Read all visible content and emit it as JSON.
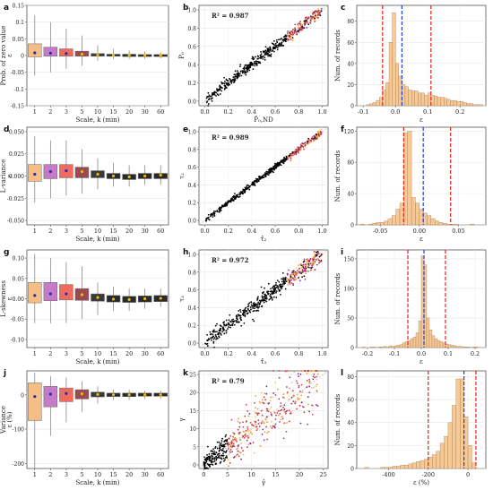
{
  "panels": [
    {
      "id": "a",
      "label": "a",
      "type": "box",
      "ylabel": "Prob. of zero value",
      "yunit": "ε",
      "xlabel": "Scale, k (min)",
      "ylim": [
        -0.15,
        0.15
      ],
      "yticks": [
        "0.15",
        "0.1",
        "0.05",
        "0",
        "-0.05",
        "-0.1",
        "-0.15"
      ],
      "ytickvals": [
        0.15,
        0.1,
        0.05,
        0,
        -0.05,
        -0.1,
        -0.15
      ],
      "categories": [
        "1",
        "2",
        "3",
        "5",
        "10",
        "15",
        "20",
        "30",
        "60"
      ],
      "boxes": [
        {
          "q1": -0.004,
          "q3": 0.035,
          "wlo": -0.06,
          "whi": 0.12,
          "mean": 0.008
        },
        {
          "q1": -0.002,
          "q3": 0.025,
          "wlo": -0.05,
          "whi": 0.1,
          "mean": 0.007
        },
        {
          "q1": -0.002,
          "q3": 0.02,
          "wlo": -0.04,
          "whi": 0.08,
          "mean": 0.006
        },
        {
          "q1": -0.002,
          "q3": 0.013,
          "wlo": -0.03,
          "whi": 0.06,
          "mean": 0.004
        },
        {
          "q1": -0.002,
          "q3": 0.006,
          "wlo": -0.015,
          "whi": 0.03,
          "mean": 0.002
        },
        {
          "q1": -0.002,
          "q3": 0.004,
          "wlo": -0.01,
          "whi": 0.02,
          "mean": 0.001
        },
        {
          "q1": -0.003,
          "q3": 0.004,
          "wlo": -0.01,
          "whi": 0.015,
          "mean": 0.001
        },
        {
          "q1": -0.003,
          "q3": 0.003,
          "wlo": -0.01,
          "whi": 0.012,
          "mean": 0.001
        },
        {
          "q1": -0.003,
          "q3": 0.003,
          "wlo": -0.008,
          "whi": 0.01,
          "mean": 0.001
        }
      ]
    },
    {
      "id": "b",
      "label": "b",
      "type": "scatter",
      "r2": "R² = 0.987",
      "ylabel": "P₀",
      "xlabel": "P̂₀,ND",
      "xlim": [
        -0.05,
        1.05
      ],
      "ylim": [
        -0.05,
        1.05
      ],
      "xticks": [
        "0.0",
        "0.2",
        "0.4",
        "0.6",
        "0.8",
        "1.0"
      ],
      "xtickvals": [
        0,
        0.2,
        0.4,
        0.6,
        0.8,
        1.0
      ],
      "yticks": [
        "0.0",
        "0.2",
        "0.4",
        "0.6",
        "0.8",
        "1.0"
      ],
      "ytickvals": [
        0,
        0.2,
        0.4,
        0.6,
        0.8,
        1.0
      ],
      "spread": 0.03,
      "curve": "linear"
    },
    {
      "id": "c",
      "label": "c",
      "type": "hist",
      "ylabel": "Num. of records",
      "xlabel": "ε",
      "xlim": [
        -0.12,
        0.28
      ],
      "ylim": [
        0,
        95
      ],
      "xticks": [
        "-0.1",
        "0.0",
        "0.1",
        "0.2"
      ],
      "xtickvals": [
        -0.1,
        0,
        0.1,
        0.2
      ],
      "yticks": [
        "0",
        "20",
        "40",
        "60",
        "80"
      ],
      "ytickvals": [
        0,
        20,
        40,
        60,
        80
      ],
      "bin_start": -0.12,
      "bin_width": 0.01,
      "counts": [
        0,
        0,
        0,
        1,
        2,
        3,
        5,
        8,
        15,
        22,
        60,
        88,
        40,
        28,
        20,
        18,
        15,
        14,
        14,
        12,
        12,
        10,
        12,
        10,
        9,
        8,
        8,
        7,
        6,
        5,
        5,
        4,
        4,
        3,
        2,
        2,
        1,
        1,
        1,
        0
      ],
      "red_lines": [
        -0.04,
        0.11
      ],
      "blue_line": 0.02
    },
    {
      "id": "d",
      "label": "d",
      "type": "box",
      "ylabel": "L-variance",
      "yunit": "ε",
      "xlabel": "Scale, k (min)",
      "ylim": [
        -0.055,
        0.055
      ],
      "yticks": [
        "0.050",
        "0.025",
        "0.000",
        "-0.025",
        "-0.050"
      ],
      "ytickvals": [
        0.05,
        0.025,
        0,
        -0.025,
        -0.05
      ],
      "categories": [
        "1",
        "2",
        "3",
        "5",
        "10",
        "15",
        "20",
        "30",
        "60"
      ],
      "boxes": [
        {
          "q1": -0.006,
          "q3": 0.013,
          "wlo": -0.03,
          "whi": 0.045,
          "mean": 0.002
        },
        {
          "q1": -0.003,
          "q3": 0.013,
          "wlo": -0.025,
          "whi": 0.04,
          "mean": 0.005
        },
        {
          "q1": -0.002,
          "q3": 0.013,
          "wlo": -0.022,
          "whi": 0.04,
          "mean": 0.006
        },
        {
          "q1": -0.002,
          "q3": 0.01,
          "wlo": -0.02,
          "whi": 0.03,
          "mean": 0.005
        },
        {
          "q1": -0.002,
          "q3": 0.006,
          "wlo": -0.015,
          "whi": 0.02,
          "mean": 0.002
        },
        {
          "q1": -0.003,
          "q3": 0.003,
          "wlo": -0.012,
          "whi": 0.015,
          "mean": 0.0
        },
        {
          "q1": -0.004,
          "q3": 0.002,
          "wlo": -0.012,
          "whi": 0.012,
          "mean": -0.001
        },
        {
          "q1": -0.003,
          "q3": 0.003,
          "wlo": -0.01,
          "whi": 0.012,
          "mean": 0.0
        },
        {
          "q1": -0.003,
          "q3": 0.003,
          "wlo": -0.01,
          "whi": 0.012,
          "mean": 0.001
        }
      ]
    },
    {
      "id": "e",
      "label": "e",
      "type": "scatter",
      "r2": "R² = 0.989",
      "ylabel": "τ₂",
      "xlabel": "τ̂₂",
      "xlim": [
        -0.05,
        1.05
      ],
      "ylim": [
        -0.05,
        1.05
      ],
      "xticks": [
        "0.0",
        "0.2",
        "0.4",
        "0.6",
        "0.8",
        "1.0"
      ],
      "xtickvals": [
        0,
        0.2,
        0.4,
        0.6,
        0.8,
        1.0
      ],
      "yticks": [
        "0.0",
        "0.2",
        "0.4",
        "0.6",
        "0.8",
        "1.0"
      ],
      "ytickvals": [
        0,
        0.2,
        0.4,
        0.6,
        0.8,
        1.0
      ],
      "spread": 0.015,
      "curve": "linear"
    },
    {
      "id": "f",
      "label": "f",
      "type": "hist",
      "ylabel": "Num. of records",
      "xlabel": "ε",
      "xlim": [
        -0.08,
        0.085
      ],
      "ylim": [
        0,
        125
      ],
      "xticks": [
        "-0.05",
        "0.00",
        "0.05"
      ],
      "xtickvals": [
        -0.05,
        0,
        0.05
      ],
      "yticks": [
        "0",
        "40",
        "80",
        "120"
      ],
      "ytickvals": [
        0,
        40,
        80,
        120
      ],
      "bin_start": -0.075,
      "bin_width": 0.005,
      "counts": [
        1,
        0,
        1,
        2,
        3,
        3,
        5,
        8,
        12,
        20,
        28,
        118,
        120,
        35,
        28,
        20,
        15,
        12,
        8,
        5,
        3,
        2,
        1,
        1,
        1,
        0,
        0,
        0,
        1,
        0,
        0,
        0,
        0
      ],
      "red_lines": [
        -0.02,
        0.04
      ],
      "blue_line": 0.005
    },
    {
      "id": "g",
      "label": "g",
      "type": "box",
      "ylabel": "L-skewness",
      "yunit": "ε",
      "xlabel": "Scale, k (min)",
      "ylim": [
        -0.12,
        0.12
      ],
      "yticks": [
        "0.10",
        "0.05",
        "0.00",
        "-0.05",
        "-0.10"
      ],
      "ytickvals": [
        0.1,
        0.05,
        0,
        -0.05,
        -0.1
      ],
      "categories": [
        "1",
        "2",
        "3",
        "5",
        "10",
        "15",
        "20",
        "30",
        "60"
      ],
      "boxes": [
        {
          "q1": -0.01,
          "q3": 0.04,
          "wlo": -0.06,
          "whi": 0.11,
          "mean": 0.008
        },
        {
          "q1": -0.005,
          "q3": 0.04,
          "wlo": -0.06,
          "whi": 0.1,
          "mean": 0.012
        },
        {
          "q1": -0.003,
          "q3": 0.035,
          "wlo": -0.06,
          "whi": 0.09,
          "mean": 0.012
        },
        {
          "q1": -0.004,
          "q3": 0.025,
          "wlo": -0.05,
          "whi": 0.08,
          "mean": 0.01
        },
        {
          "q1": -0.006,
          "q3": 0.012,
          "wlo": -0.04,
          "whi": 0.04,
          "mean": 0.003
        },
        {
          "q1": -0.008,
          "q3": 0.008,
          "wlo": -0.03,
          "whi": 0.03,
          "mean": -0.001
        },
        {
          "q1": -0.009,
          "q3": 0.006,
          "wlo": -0.03,
          "whi": 0.025,
          "mean": -0.002
        },
        {
          "q1": -0.008,
          "q3": 0.007,
          "wlo": -0.025,
          "whi": 0.025,
          "mean": 0.0
        },
        {
          "q1": -0.007,
          "q3": 0.008,
          "wlo": -0.02,
          "whi": 0.025,
          "mean": 0.001
        }
      ]
    },
    {
      "id": "h",
      "label": "h",
      "type": "scatter",
      "r2": "R² = 0.972",
      "ylabel": "τ₃",
      "xlabel": "τ̂₃",
      "xlim": [
        -0.05,
        1.05
      ],
      "ylim": [
        -0.05,
        1.05
      ],
      "xticks": [
        "0.0",
        "0.2",
        "0.4",
        "0.6",
        "0.8",
        "1.0"
      ],
      "xtickvals": [
        0,
        0.2,
        0.4,
        0.6,
        0.8,
        1.0
      ],
      "yticks": [
        "0.0",
        "0.2",
        "0.4",
        "0.6",
        "0.8",
        "1.0"
      ],
      "ytickvals": [
        0,
        0.2,
        0.4,
        0.6,
        0.8,
        1.0
      ],
      "spread": 0.045,
      "curve": "linear"
    },
    {
      "id": "i",
      "label": "i",
      "type": "hist",
      "ylabel": "Num. of records",
      "xlabel": "ε",
      "xlim": [
        -0.24,
        0.24
      ],
      "ylim": [
        0,
        165
      ],
      "xticks": [
        "-0.2",
        "-0.1",
        "0.0",
        "0.1",
        "0.2"
      ],
      "xtickvals": [
        -0.2,
        -0.1,
        0,
        0.1,
        0.2
      ],
      "yticks": [
        "0",
        "50",
        "100",
        "150"
      ],
      "ytickvals": [
        0,
        50,
        100,
        150
      ],
      "bin_start": -0.23,
      "bin_width": 0.01,
      "counts": [
        0,
        1,
        0,
        0,
        1,
        1,
        0,
        1,
        1,
        2,
        1,
        3,
        2,
        3,
        4,
        5,
        8,
        10,
        12,
        15,
        18,
        25,
        45,
        155,
        140,
        50,
        30,
        20,
        15,
        12,
        10,
        8,
        6,
        5,
        4,
        3,
        2,
        2,
        1,
        1,
        1,
        0,
        1,
        1,
        0,
        0
      ],
      "red_lines": [
        -0.05,
        0.09
      ],
      "blue_line": 0.01
    },
    {
      "id": "j",
      "label": "j",
      "type": "box",
      "ylabel": "Variance",
      "yunit": "ε (%)",
      "xlabel": "Scale, k (min)",
      "ylim": [
        -215,
        70
      ],
      "yticks": [
        "0",
        "-100",
        "-200"
      ],
      "ytickvals": [
        0,
        -100,
        -200
      ],
      "categories": [
        "1",
        "2",
        "3",
        "5",
        "10",
        "15",
        "20",
        "30",
        "60"
      ],
      "boxes": [
        {
          "q1": -75,
          "q3": 35,
          "wlo": -215,
          "whi": 65,
          "mean": -5
        },
        {
          "q1": -35,
          "q3": 25,
          "wlo": -120,
          "whi": 55,
          "mean": 2
        },
        {
          "q1": -20,
          "q3": 20,
          "wlo": -80,
          "whi": 50,
          "mean": 4
        },
        {
          "q1": -12,
          "q3": 15,
          "wlo": -50,
          "whi": 40,
          "mean": 3
        },
        {
          "q1": -6,
          "q3": 8,
          "wlo": -25,
          "whi": 25,
          "mean": 1
        },
        {
          "q1": -5,
          "q3": 5,
          "wlo": -15,
          "whi": 15,
          "mean": 0
        },
        {
          "q1": -5,
          "q3": 5,
          "wlo": -15,
          "whi": 15,
          "mean": 0
        },
        {
          "q1": -4,
          "q3": 5,
          "wlo": -12,
          "whi": 12,
          "mean": 0
        },
        {
          "q1": -4,
          "q3": 5,
          "wlo": -12,
          "whi": 12,
          "mean": 0
        }
      ]
    },
    {
      "id": "k",
      "label": "k",
      "type": "scatter",
      "r2": "R² = 0.79",
      "ylabel": "γ",
      "xlabel": "γ̂",
      "xlim": [
        -1,
        26
      ],
      "ylim": [
        -1,
        26
      ],
      "xticks": [
        "0",
        "5",
        "10",
        "15",
        "20",
        "25"
      ],
      "xtickvals": [
        0,
        5,
        10,
        15,
        20,
        25
      ],
      "yticks": [
        "0",
        "5",
        "10",
        "15",
        "20",
        "25"
      ],
      "ytickvals": [
        0,
        5,
        10,
        15,
        20,
        25
      ],
      "spread": 2.6,
      "curve": "gamma"
    },
    {
      "id": "l",
      "label": "l",
      "type": "hist",
      "ylabel": "Num. of records",
      "xlabel": "ε (%)",
      "xlim": [
        -560,
        90
      ],
      "ylim": [
        0,
        85
      ],
      "xticks": [
        "-400",
        "-200",
        "0"
      ],
      "xtickvals": [
        -400,
        -200,
        0
      ],
      "yticks": [
        "0",
        "20",
        "40",
        "60",
        "80"
      ],
      "ytickvals": [
        0,
        20,
        40,
        60,
        80
      ],
      "bin_start": -520,
      "bin_width": 20,
      "counts": [
        1,
        0,
        0,
        0,
        1,
        1,
        1,
        2,
        2,
        3,
        3,
        4,
        5,
        6,
        7,
        8,
        10,
        12,
        15,
        22,
        28,
        40,
        55,
        78,
        78,
        45,
        20,
        5,
        0,
        0,
        0,
        0,
        0
      ],
      "red_lines": [
        -200,
        40
      ],
      "blue_line": -20
    }
  ],
  "colors": {
    "box": [
      "#f5be85",
      "#c67bc8",
      "#ef6b5e",
      "#9b4a55",
      "#3a3a3a",
      "#2a2a2a",
      "#2a2a2a",
      "#2a2a2a",
      "#2a2a2a"
    ],
    "box_mean": "#f0b90b",
    "box_mean_first": "#1f2fb5",
    "hist_fill": "#f7c995",
    "hist_edge": "#8a6a4a",
    "red": "#e2231a",
    "blue": "#1f3fd0",
    "diag": "#bfbfbf",
    "scatter": [
      "#000000",
      "#e0344a",
      "#f4933a",
      "#f9c45e",
      "#7a2d7e",
      "#c7304f"
    ]
  }
}
